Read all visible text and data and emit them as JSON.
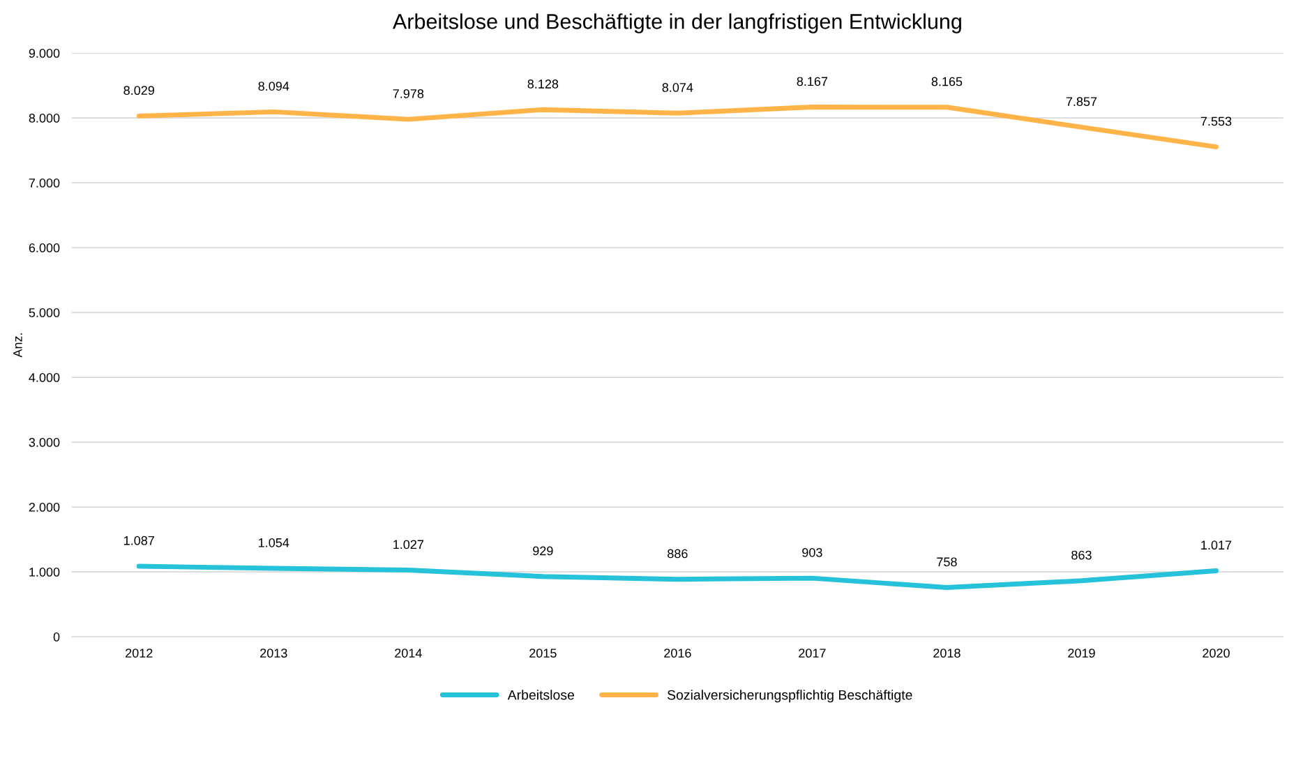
{
  "chart_data": {
    "type": "line",
    "title": "Arbeitslose und Beschäftigte in der langfristigen Entwicklung",
    "ylabel": "Anz.",
    "categories": [
      "2012",
      "2013",
      "2014",
      "2015",
      "2016",
      "2017",
      "2018",
      "2019",
      "2020"
    ],
    "series": [
      {
        "name": "Arbeitslose",
        "color": "#26c2d9",
        "values": [
          1087,
          1054,
          1027,
          929,
          886,
          903,
          758,
          863,
          1017
        ],
        "value_labels": [
          "1.087",
          "1.054",
          "1.027",
          "929",
          "886",
          "903",
          "758",
          "863",
          "1.017"
        ]
      },
      {
        "name": "Sozialversicherungspflichtig Beschäftigte",
        "color": "#ffb44a",
        "values": [
          8029,
          8094,
          7978,
          8128,
          8074,
          8167,
          8165,
          7857,
          7553
        ],
        "value_labels": [
          "8.029",
          "8.094",
          "7.978",
          "8.128",
          "8.074",
          "8.167",
          "8.165",
          "7.857",
          "7.553"
        ]
      }
    ],
    "ylim": [
      0,
      9000
    ],
    "yticks": [
      0,
      {
        "value": 1000,
        "label": "1.000"
      },
      {
        "value": 2000,
        "label": "2.000"
      },
      {
        "value": 3000,
        "label": "3.000"
      },
      {
        "value": 4000,
        "label": "4.000"
      },
      {
        "value": 5000,
        "label": "5.000"
      },
      {
        "value": 6000,
        "label": "6.000"
      },
      {
        "value": 7000,
        "label": "7.000"
      },
      {
        "value": 8000,
        "label": "8.000"
      },
      {
        "value": 9000,
        "label": "9.000"
      }
    ],
    "grid": "y",
    "legend": "bottom",
    "marker": "none",
    "line_style": "solid"
  }
}
